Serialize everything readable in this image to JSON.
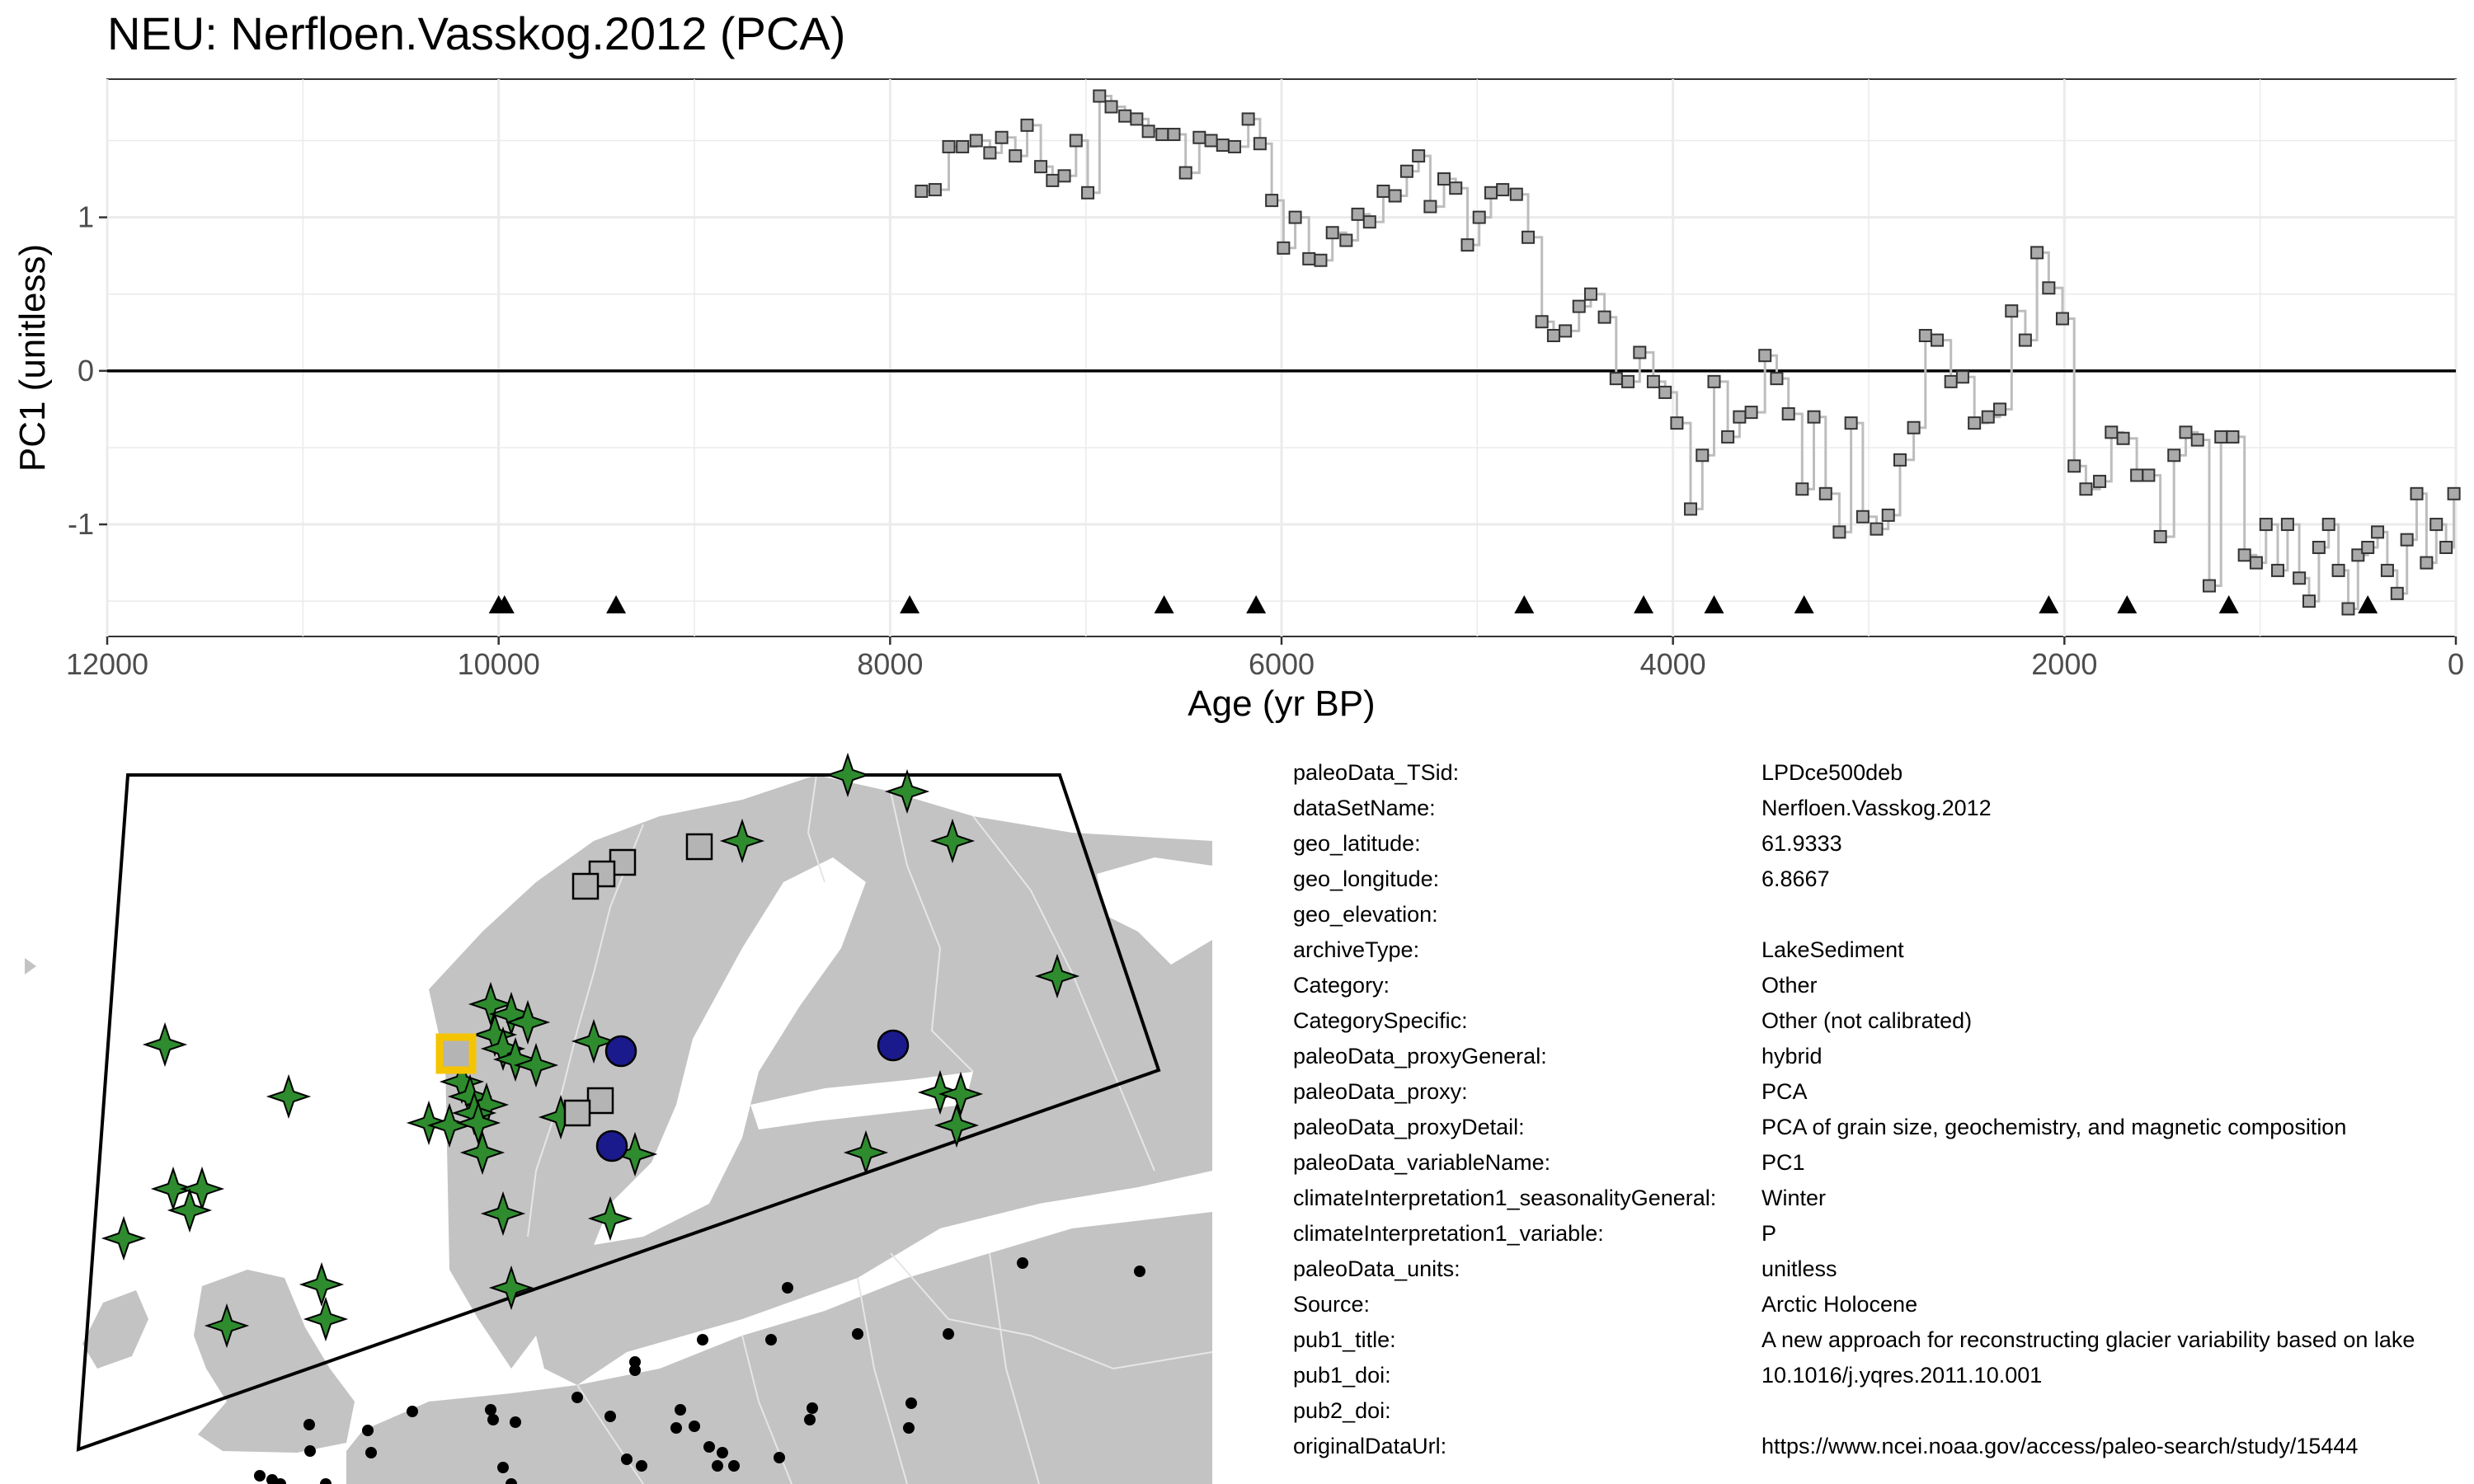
{
  "title": "NEU: Nerfloen.Vasskog.2012 (PCA)",
  "chart_data": {
    "type": "line",
    "xlabel": "Age (yr BP)",
    "ylabel": "PC1 (unitless)",
    "xlim": [
      12000,
      0
    ],
    "ylim": [
      -1.73,
      1.9
    ],
    "x_reversed": true,
    "grid": true,
    "zero_line": 0,
    "xticks": [
      12000,
      10000,
      8000,
      6000,
      4000,
      2000,
      0
    ],
    "yticks": [
      1,
      0,
      -1
    ],
    "series": [
      {
        "x": [
          7840,
          7770,
          7700,
          7630,
          7560,
          7490,
          7430,
          7360,
          7300,
          7230,
          7170,
          7110,
          7050,
          6990,
          6930,
          6870,
          6800,
          6740,
          6680,
          6610,
          6550,
          6490,
          6420,
          6360,
          6300,
          6240,
          6170,
          6110,
          6050,
          5990,
          5930,
          5860,
          5800,
          5740,
          5670,
          5610,
          5550,
          5480,
          5420,
          5360,
          5300,
          5240,
          5170,
          5110,
          5050,
          4990,
          4930,
          4870,
          4800,
          4740,
          4670,
          4610,
          4550,
          4480,
          4420,
          4350,
          4290,
          4230,
          4170,
          4100,
          4040,
          3980,
          3910,
          3850,
          3790,
          3720,
          3660,
          3600,
          3530,
          3470,
          3410,
          3340,
          3280,
          3220,
          3150,
          3090,
          3030,
          2960,
          2900,
          2840,
          2770,
          2710,
          2650,
          2580,
          2520,
          2460,
          2390,
          2330,
          2270,
          2200,
          2140,
          2080,
          2010,
          1950,
          1890,
          1820,
          1760,
          1700,
          1630,
          1570,
          1510,
          1440,
          1380,
          1320,
          1260,
          1200,
          1140,
          1080,
          1020,
          970,
          910,
          860,
          800,
          750,
          700,
          650,
          600,
          550,
          500,
          450,
          400,
          350,
          300,
          250,
          200,
          150,
          100,
          50,
          10
        ],
        "y": [
          1.17,
          1.18,
          1.46,
          1.46,
          1.5,
          1.42,
          1.52,
          1.4,
          1.6,
          1.33,
          1.24,
          1.27,
          1.5,
          1.16,
          1.79,
          1.72,
          1.66,
          1.64,
          1.56,
          1.54,
          1.54,
          1.29,
          1.52,
          1.5,
          1.47,
          1.46,
          1.64,
          1.48,
          1.11,
          0.8,
          1.0,
          0.73,
          0.72,
          0.9,
          0.85,
          1.02,
          0.97,
          1.17,
          1.14,
          1.3,
          1.4,
          1.07,
          1.25,
          1.19,
          0.82,
          1.0,
          1.16,
          1.18,
          1.15,
          0.87,
          0.32,
          0.23,
          0.26,
          0.42,
          0.5,
          0.35,
          -0.05,
          -0.07,
          0.12,
          -0.07,
          -0.14,
          -0.34,
          -0.9,
          -0.55,
          -0.07,
          -0.43,
          -0.3,
          -0.27,
          0.1,
          -0.05,
          -0.28,
          -0.77,
          -0.3,
          -0.8,
          -1.05,
          -0.34,
          -0.95,
          -1.03,
          -0.94,
          -0.58,
          -0.37,
          0.23,
          0.2,
          -0.07,
          -0.04,
          -0.34,
          -0.3,
          -0.25,
          0.39,
          0.2,
          0.77,
          0.54,
          0.34,
          -0.62,
          -0.77,
          -0.72,
          -0.4,
          -0.44,
          -0.68,
          -0.68,
          -1.08,
          -0.55,
          -0.4,
          -0.45,
          -1.4,
          -0.43,
          -0.43,
          -1.2,
          -1.25,
          -1.0,
          -1.3,
          -1.0,
          -1.35,
          -1.5,
          -1.15,
          -1.0,
          -1.3,
          -1.55,
          -1.2,
          -1.15,
          -1.05,
          -1.3,
          -1.45,
          -1.1,
          -0.8,
          -1.25,
          -1.0,
          -1.15,
          -0.8
        ]
      }
    ],
    "chron_markers": [
      10000,
      9970,
      9400,
      7900,
      6600,
      6130,
      4760,
      4150,
      3790,
      3330,
      2080,
      1680,
      1160,
      450
    ]
  },
  "metadata": [
    {
      "key": "paleoData_TSid:",
      "value": "LPDce500deb"
    },
    {
      "key": "dataSetName:",
      "value": "Nerfloen.Vasskog.2012"
    },
    {
      "key": "geo_latitude:",
      "value": "61.9333"
    },
    {
      "key": "geo_longitude:",
      "value": "6.8667"
    },
    {
      "key": "geo_elevation:",
      "value": ""
    },
    {
      "key": "archiveType:",
      "value": "LakeSediment"
    },
    {
      "key": "Category:",
      "value": "Other"
    },
    {
      "key": "CategorySpecific:",
      "value": "Other (not calibrated)"
    },
    {
      "key": "paleoData_proxyGeneral:",
      "value": "hybrid"
    },
    {
      "key": "paleoData_proxy:",
      "value": "PCA"
    },
    {
      "key": "paleoData_proxyDetail:",
      "value": "PCA of grain size, geochemistry, and magnetic composition"
    },
    {
      "key": "paleoData_variableName:",
      "value": "PC1"
    },
    {
      "key": "climateInterpretation1_seasonalityGeneral:",
      "value": "Winter"
    },
    {
      "key": "climateInterpretation1_variable:",
      "value": "P"
    },
    {
      "key": "paleoData_units:",
      "value": "unitless"
    },
    {
      "key": "Source:",
      "value": "Arctic Holocene"
    },
    {
      "key": "pub1_title:",
      "value": "A new approach for reconstructing glacier variability based on lake"
    },
    {
      "key": "pub1_doi:",
      "value": "10.1016/j.yqres.2011.10.001"
    },
    {
      "key": "pub2_doi:",
      "value": ""
    },
    {
      "key": "originalDataUrl:",
      "value": "https://www.ncei.noaa.gov/access/paleo-search/study/15444"
    }
  ],
  "map": {
    "colors": {
      "land": "#c3c3c3",
      "border": "#e6e6e6",
      "star": "#2e8b2e",
      "circle": "#1a1a8c",
      "square": "#b4b4b4",
      "highlight": "#f5c400",
      "dot": "#000000"
    }
  }
}
